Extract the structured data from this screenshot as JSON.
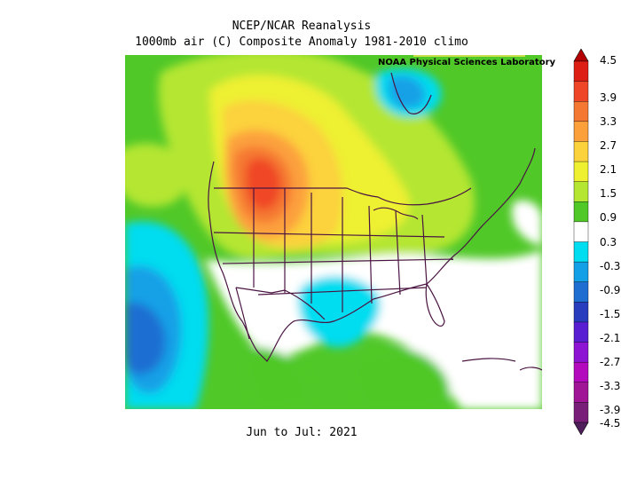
{
  "title_line1": "NCEP/NCAR Reanalysis",
  "title_line2": "1000mb air (C) Composite Anomaly 1981-2010 climo",
  "credit": "NOAA Physical Sciences Laboratory",
  "period": "Jun to Jul: 2021",
  "colorbar": {
    "labels": [
      "4.5",
      "3.9",
      "3.3",
      "2.7",
      "2.1",
      "1.5",
      "0.9",
      "0.3",
      "-0.3",
      "-0.9",
      "-1.5",
      "-2.1",
      "-2.7",
      "-3.3",
      "-3.9",
      "-4.5"
    ],
    "colors": [
      "#b40000",
      "#dc1e14",
      "#f04628",
      "#f57832",
      "#fca03c",
      "#fcd23c",
      "#eef030",
      "#b4e632",
      "#50c828",
      "#ffffff",
      "#00dcf0",
      "#14a0e6",
      "#1e6ed2",
      "#283cbe",
      "#5a1ed2",
      "#8c14d2",
      "#b40abe",
      "#a01496",
      "#781e78",
      "#501e5a"
    ]
  }
}
